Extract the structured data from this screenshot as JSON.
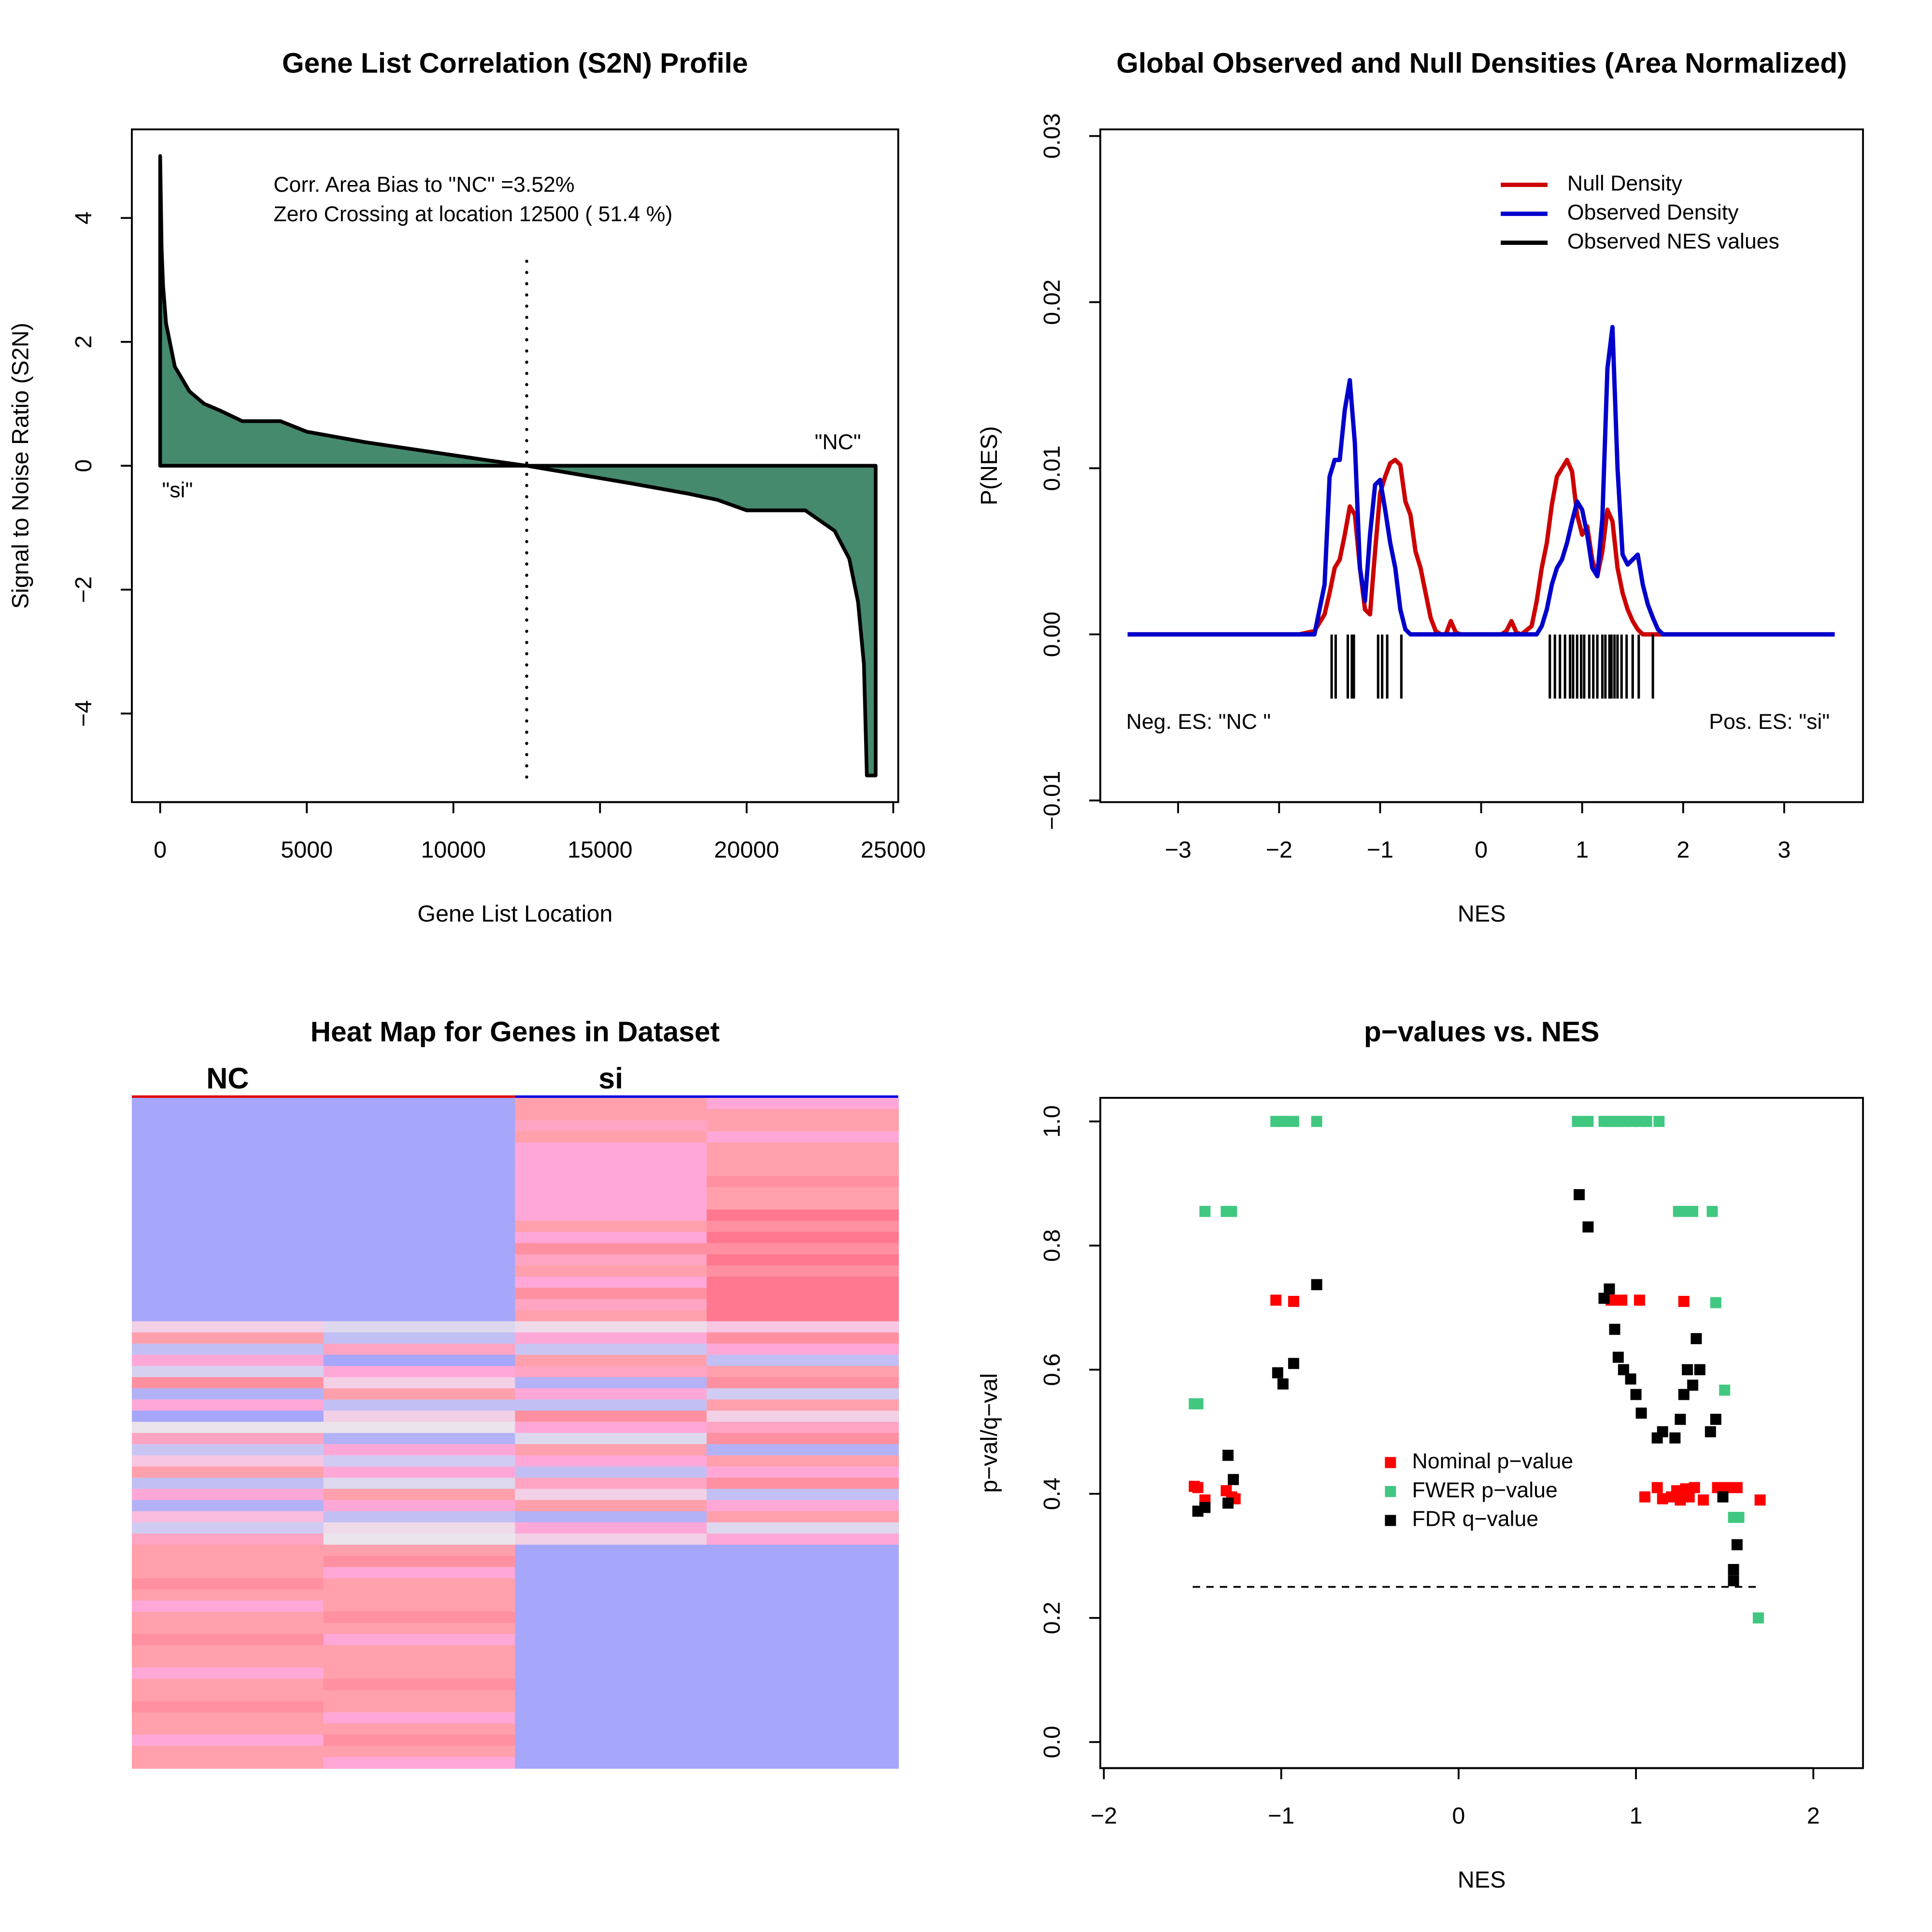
{
  "chart_data": [
    {
      "type": "area",
      "title": "Gene List Correlation (S2N) Profile",
      "xlabel": "Gene List Location",
      "ylabel": "Signal to Noise Ratio (S2N)",
      "annotations": [
        "Corr. Area Bias to \"NC\" =3.52%",
        "Zero Crossing at location  12500  ( 51.4  %)",
        "\"NC\"",
        "\"si\""
      ],
      "zero_crossing": 12500,
      "color": "#468a6e",
      "x": [
        0,
        50,
        100,
        200,
        500,
        1000,
        1500,
        2000,
        2800,
        4100,
        5000,
        7000,
        9000,
        11000,
        12500,
        14000,
        16000,
        18000,
        19000,
        20000,
        22000,
        23000,
        23500,
        23800,
        24000,
        24100,
        24200,
        24400
      ],
      "values": [
        5,
        3.5,
        2.9,
        2.3,
        1.6,
        1.2,
        1.0,
        0.9,
        0.72,
        0.72,
        0.55,
        0.38,
        0.24,
        0.1,
        0,
        -0.12,
        -0.28,
        -0.45,
        -0.55,
        -0.72,
        -0.72,
        -1.05,
        -1.5,
        -2.2,
        -3.2,
        -5,
        -5,
        -5
      ],
      "xlim": [
        -966,
        25170
      ],
      "xticks": [
        0,
        5000,
        10000,
        15000,
        20000,
        25000
      ],
      "ylim": [
        -5.43,
        5.43
      ],
      "yticks": [
        {
          "value": -4,
          "label": "−4"
        },
        {
          "value": -2,
          "label": "−2"
        },
        0,
        2,
        4
      ]
    },
    {
      "type": "line",
      "title": "Global Observed and Null Densities (Area Normalized)",
      "xlabel": "NES",
      "ylabel": "P(NES)",
      "annotations": [
        "Neg. ES: \"NC \"",
        "Pos. ES: \"si\""
      ],
      "x": [
        -3.5,
        -1.8,
        -1.65,
        -1.55,
        -1.5,
        -1.45,
        -1.4,
        -1.35,
        -1.3,
        -1.25,
        -1.2,
        -1.15,
        -1.1,
        -1.05,
        -1.0,
        -0.95,
        -0.9,
        -0.85,
        -0.8,
        -0.75,
        -0.7,
        -0.65,
        -0.6,
        -0.55,
        -0.5,
        -0.45,
        -0.4,
        -0.35,
        -0.3,
        -0.25,
        -0.2,
        0.2,
        0.25,
        0.3,
        0.35,
        0.4,
        0.5,
        0.55,
        0.6,
        0.65,
        0.7,
        0.75,
        0.8,
        0.85,
        0.9,
        0.95,
        1.0,
        1.05,
        1.1,
        1.15,
        1.2,
        1.25,
        1.3,
        1.35,
        1.4,
        1.45,
        1.5,
        1.55,
        1.6,
        1.65,
        1.7,
        1.75,
        1.8,
        1.9,
        3.5
      ],
      "series": [
        {
          "name": "Null Density",
          "color": "#cc0000",
          "values": [
            0,
            0,
            0.0002,
            0.0012,
            0.0025,
            0.004,
            0.0045,
            0.006,
            0.0077,
            0.0072,
            0.004,
            0.0015,
            0.0012,
            0.005,
            0.0085,
            0.0095,
            0.0103,
            0.0105,
            0.0102,
            0.008,
            0.0072,
            0.005,
            0.004,
            0.0025,
            0.001,
            0.0002,
            0,
            0,
            0.0008,
            0.0001,
            0,
            0,
            0.0002,
            0.0008,
            0.0001,
            0,
            0.0005,
            0.002,
            0.004,
            0.0055,
            0.0078,
            0.0095,
            0.01,
            0.0105,
            0.0098,
            0.0072,
            0.006,
            0.0065,
            0.0045,
            0.0035,
            0.005,
            0.0075,
            0.0068,
            0.004,
            0.0025,
            0.0015,
            0.0008,
            0.0003,
            0,
            0,
            0,
            0,
            0,
            0,
            0
          ]
        },
        {
          "name": "Observed Density",
          "color": "#0000cc",
          "values": [
            0,
            0,
            0,
            0.003,
            0.0095,
            0.0105,
            0.0105,
            0.0135,
            0.0153,
            0.0115,
            0.004,
            0.002,
            0.006,
            0.009,
            0.0093,
            0.0075,
            0.0055,
            0.004,
            0.0015,
            0.0003,
            0,
            0,
            0,
            0,
            0,
            0,
            0,
            0,
            0,
            0,
            0,
            0,
            0,
            0,
            0,
            0,
            0,
            0,
            0.0005,
            0.0015,
            0.003,
            0.004,
            0.0045,
            0.0055,
            0.0068,
            0.008,
            0.0075,
            0.006,
            0.004,
            0.0035,
            0.007,
            0.016,
            0.0185,
            0.01,
            0.0048,
            0.0042,
            0.0045,
            0.0048,
            0.003,
            0.0018,
            0.001,
            0.0003,
            0,
            0,
            0
          ]
        }
      ],
      "rug": {
        "name": "Observed NES values",
        "color": "#000000",
        "values": [
          -1.48,
          -1.44,
          -1.32,
          -1.28,
          -1.26,
          -1.02,
          -0.98,
          -0.93,
          -0.79,
          0.68,
          0.73,
          0.78,
          0.83,
          0.88,
          0.91,
          0.95,
          0.99,
          1.02,
          1.07,
          1.11,
          1.15,
          1.2,
          1.23,
          1.27,
          1.29,
          1.32,
          1.35,
          1.39,
          1.44,
          1.5,
          1.56,
          1.7
        ]
      },
      "xlim": [
        -3.77,
        3.78
      ],
      "xticks": [
        {
          "value": -3,
          "label": "−3"
        },
        {
          "value": -2,
          "label": "−2"
        },
        {
          "value": -1,
          "label": "−1"
        },
        0,
        1,
        2,
        3
      ],
      "ylim": [
        -0.0101,
        0.0304
      ],
      "yticks": [
        {
          "value": -0.01,
          "label": "−0.01"
        },
        {
          "value": 0,
          "label": "0.00"
        },
        0.01,
        0.02,
        0.03
      ]
    },
    {
      "type": "heatmap",
      "title": "Heat Map for Genes in Dataset",
      "categories": [
        "NC",
        "si"
      ],
      "colorscale": [
        [
          -1,
          "#a6a6fa"
        ],
        [
          0,
          "#ece4ec"
        ],
        [
          0.6,
          "#ffa8d8"
        ],
        [
          1,
          "#ffa0ac"
        ],
        [
          1.5,
          "#ff7890"
        ]
      ],
      "rows": [
        [
          -1,
          -1,
          1.0,
          0.6
        ],
        [
          -1,
          -1,
          1.0,
          1.0
        ],
        [
          -1,
          -1,
          0.8,
          1.0
        ],
        [
          -1,
          -1,
          1.0,
          0.6
        ],
        [
          -1,
          -1,
          0.6,
          1.0
        ],
        [
          -1,
          -1,
          0.6,
          1.0
        ],
        [
          -1,
          -1,
          0.6,
          1.0
        ],
        [
          -1,
          -1,
          0.6,
          1.2
        ],
        [
          -1,
          -1,
          0.6,
          1.0
        ],
        [
          -1,
          -1,
          0.6,
          1.0
        ],
        [
          -1,
          -1,
          0.6,
          1.5
        ],
        [
          -1,
          -1,
          1.0,
          1.2
        ],
        [
          -1,
          -1,
          0.6,
          1.5
        ],
        [
          -1,
          -1,
          1.2,
          1.2
        ],
        [
          -1,
          -1,
          0.8,
          1.5
        ],
        [
          -1,
          -1,
          1.0,
          1.2
        ],
        [
          -1,
          -1,
          0.6,
          1.5
        ],
        [
          -1,
          -1,
          1.2,
          1.5
        ],
        [
          -1,
          -1,
          0.8,
          1.5
        ],
        [
          -1,
          -1,
          1.0,
          1.5
        ],
        [
          0.2,
          -0.2,
          0.1,
          0.3
        ],
        [
          1.0,
          -0.6,
          0.6,
          1.2
        ],
        [
          -0.6,
          0.8,
          -0.5,
          0.6
        ],
        [
          0.6,
          -1,
          1.0,
          -0.6
        ],
        [
          -0.3,
          0.6,
          0.8,
          1.0
        ],
        [
          1.2,
          0.2,
          -0.8,
          1.2
        ],
        [
          -0.8,
          1.0,
          0.6,
          -0.4
        ],
        [
          0.6,
          -0.6,
          -0.6,
          1.0
        ],
        [
          -1,
          0.2,
          1.2,
          0.2
        ],
        [
          0,
          0,
          0.6,
          0.8
        ],
        [
          0.8,
          -0.8,
          -0.2,
          1.2
        ],
        [
          -0.5,
          0.6,
          1.0,
          -0.8
        ],
        [
          0.3,
          -0.4,
          0.6,
          1.0
        ],
        [
          1.0,
          0.6,
          -0.6,
          0.6
        ],
        [
          -0.6,
          -0.2,
          0.8,
          1.2
        ],
        [
          0.6,
          1.0,
          0.2,
          -0.6
        ],
        [
          -0.8,
          0.6,
          1.0,
          0.6
        ],
        [
          0.4,
          -0.6,
          -0.8,
          1.0
        ],
        [
          -0.4,
          0.1,
          0.6,
          -0.2
        ],
        [
          0.8,
          0,
          0.2,
          0.6
        ],
        [
          1,
          1,
          -1,
          -1
        ],
        [
          1,
          1.2,
          -1,
          -1
        ],
        [
          1,
          0.6,
          -1,
          -1
        ],
        [
          1.2,
          1,
          -1,
          -1
        ],
        [
          1,
          1,
          -1,
          -1
        ],
        [
          0.6,
          1,
          -1,
          -1
        ],
        [
          1,
          1.2,
          -1,
          -1
        ],
        [
          1,
          1,
          -1,
          -1
        ],
        [
          1.2,
          0.6,
          -1,
          -1
        ],
        [
          1,
          1,
          -1,
          -1
        ],
        [
          1,
          1,
          -1,
          -1
        ],
        [
          0.6,
          1,
          -1,
          -1
        ],
        [
          1,
          1.2,
          -1,
          -1
        ],
        [
          1,
          1,
          -1,
          -1
        ],
        [
          1.2,
          1,
          -1,
          -1
        ],
        [
          1,
          0.6,
          -1,
          -1
        ],
        [
          1,
          1,
          -1,
          -1
        ],
        [
          0.6,
          1.2,
          -1,
          -1
        ],
        [
          1,
          1,
          -1,
          -1
        ],
        [
          1,
          0.6,
          -1,
          -1
        ]
      ]
    },
    {
      "type": "scatter",
      "title": "p−values vs. NES",
      "xlabel": "NES",
      "ylabel": "p−val/q−val",
      "threshold": 0.25,
      "series": [
        {
          "name": "Nominal p−value",
          "color": "#ff0000",
          "x": [
            -1.49,
            -1.47,
            -1.43,
            -1.31,
            -1.28,
            -1.26,
            -1.03,
            -0.93,
            0.82,
            0.86,
            0.92,
            1.02,
            1.27,
            1.05,
            1.12,
            1.15,
            1.2,
            1.23,
            1.25,
            1.28,
            1.3,
            1.33,
            1.38,
            1.46,
            1.52,
            1.57,
            1.7
          ],
          "values": [
            0.412,
            0.41,
            0.39,
            0.405,
            0.395,
            0.392,
            0.712,
            0.71,
            0.715,
            0.712,
            0.712,
            0.712,
            0.71,
            0.395,
            0.41,
            0.392,
            0.395,
            0.405,
            0.39,
            0.408,
            0.395,
            0.41,
            0.39,
            0.41,
            0.41,
            0.41,
            0.39
          ]
        },
        {
          "name": "FWER p−value",
          "color": "#40c880",
          "x": [
            -1.49,
            -1.47,
            -1.43,
            -1.31,
            -1.28,
            -1.03,
            -0.99,
            -0.93,
            -0.8,
            0.67,
            0.73,
            0.82,
            0.86,
            0.9,
            0.94,
            0.98,
            1.02,
            1.06,
            1.13,
            1.24,
            1.28,
            1.32,
            1.43,
            1.45,
            1.5,
            1.55,
            1.58,
            1.69
          ],
          "values": [
            0.545,
            0.545,
            0.855,
            0.855,
            0.855,
            1.0,
            1.0,
            1.0,
            1.0,
            1.0,
            1.0,
            1.0,
            1.0,
            1.0,
            1.0,
            1.0,
            1.0,
            1.0,
            1.0,
            0.855,
            0.855,
            0.855,
            0.855,
            0.708,
            0.567,
            0.362,
            0.362,
            0.2
          ]
        },
        {
          "name": "FDR q−value",
          "color": "#000000",
          "x": [
            -1.47,
            -1.43,
            -1.3,
            -1.3,
            -1.27,
            -1.02,
            -0.99,
            -0.93,
            -0.8,
            0.68,
            0.73,
            0.82,
            0.85,
            0.88,
            0.9,
            0.93,
            0.97,
            1.0,
            1.03,
            1.12,
            1.15,
            1.22,
            1.25,
            1.27,
            1.29,
            1.32,
            1.34,
            1.36,
            1.42,
            1.45,
            1.49,
            1.55,
            1.55,
            1.57
          ],
          "values": [
            0.372,
            0.378,
            0.385,
            0.462,
            0.423,
            0.595,
            0.577,
            0.61,
            0.737,
            0.882,
            0.83,
            0.715,
            0.73,
            0.665,
            0.62,
            0.6,
            0.585,
            0.56,
            0.53,
            0.49,
            0.5,
            0.49,
            0.52,
            0.56,
            0.6,
            0.575,
            0.65,
            0.6,
            0.5,
            0.52,
            0.395,
            0.26,
            0.278,
            0.318
          ]
        }
      ],
      "xlim": [
        -2.02,
        2.28
      ],
      "xticks": [
        {
          "value": -2,
          "label": "−2"
        },
        {
          "value": -1,
          "label": "−1"
        },
        0,
        1,
        2
      ],
      "ylim": [
        -0.042,
        1.038
      ],
      "yticks": [
        {
          "value": 0,
          "label": "0.0"
        },
        0.2,
        0.4,
        0.6,
        0.8,
        {
          "value": 1,
          "label": "1.0"
        }
      ]
    }
  ]
}
